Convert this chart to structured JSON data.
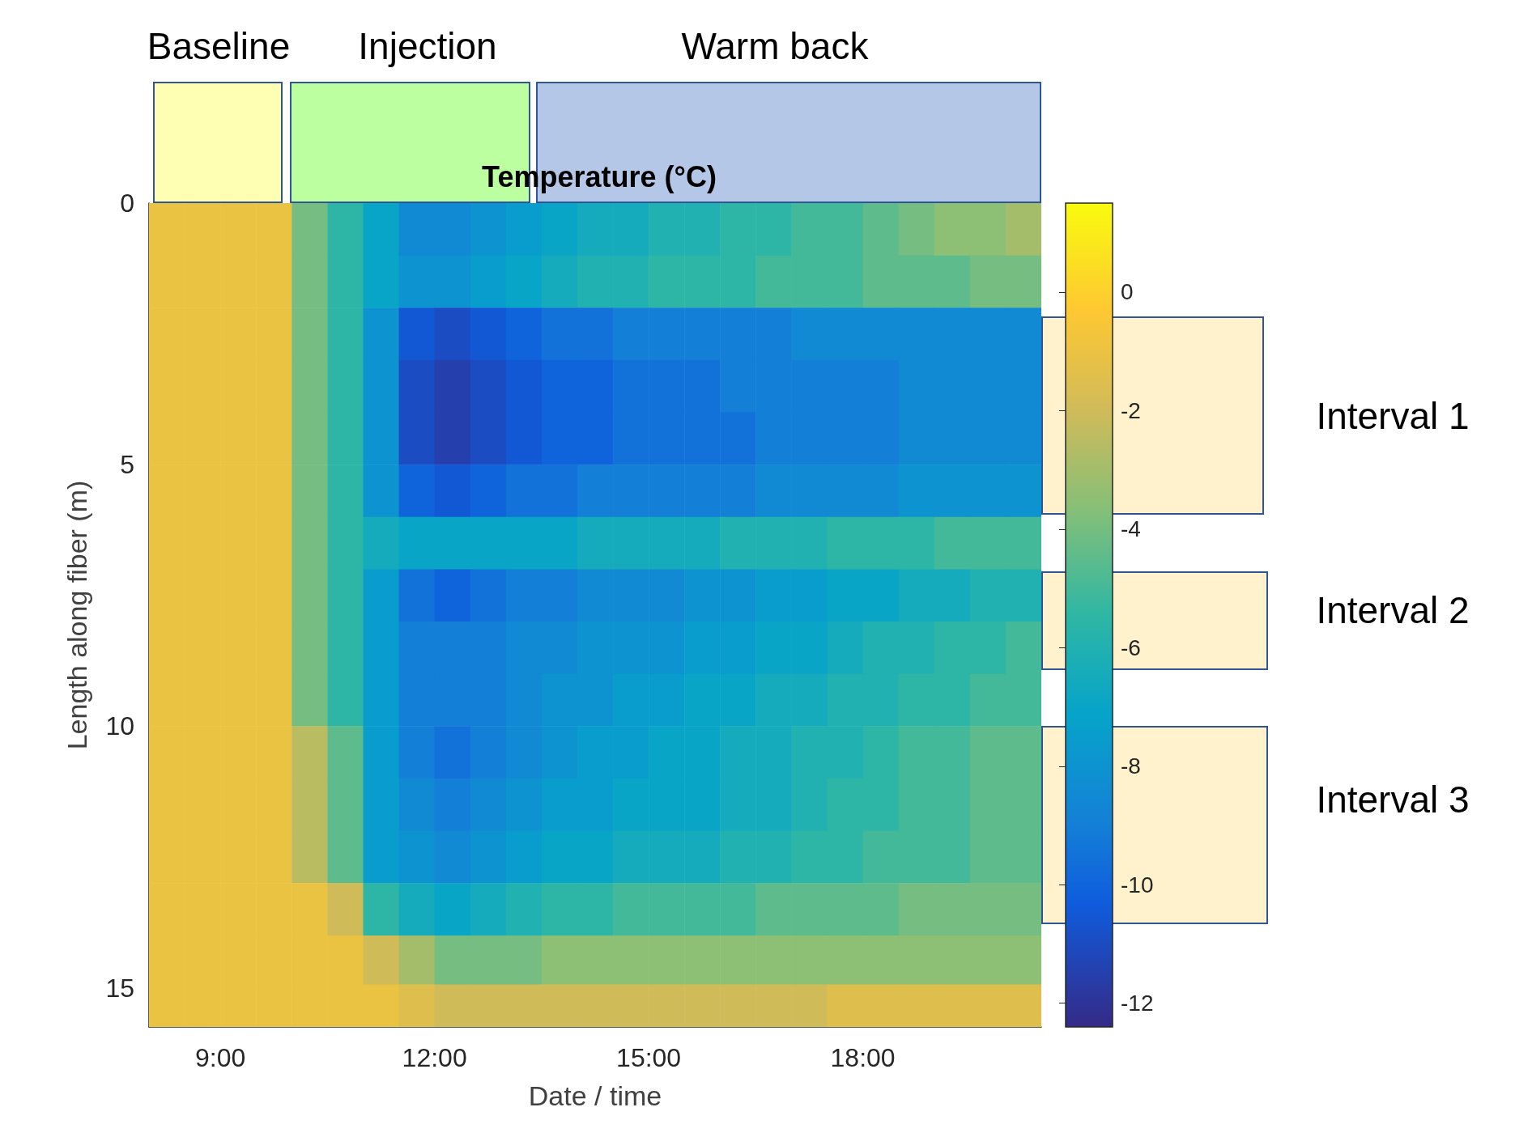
{
  "chart_data": {
    "type": "heatmap",
    "title": "Temperature (°C)",
    "xlabel": "Date / time",
    "ylabel": "Length along fiber (m)",
    "x": [
      8.25,
      8.75,
      9.25,
      9.75,
      10.25,
      10.75,
      11.25,
      11.75,
      12.25,
      12.75,
      13.25,
      13.75,
      14.25,
      14.75,
      15.25,
      15.75,
      16.25,
      16.75,
      17.25,
      17.75,
      18.25,
      18.75,
      19.25,
      19.75,
      20.25
    ],
    "y": [
      0.5,
      1.5,
      2.5,
      3.5,
      4.5,
      5.5,
      6.5,
      7.5,
      8.5,
      9.5,
      10.5,
      11.5,
      12.5,
      13.5,
      14.5,
      15.375
    ],
    "xlim": [
      8,
      20.5
    ],
    "xticks": [
      {
        "value": 9,
        "label": "9:00"
      },
      {
        "value": 12,
        "label": "12:00"
      },
      {
        "value": 15,
        "label": "15:00"
      },
      {
        "value": 18,
        "label": "18:00"
      }
    ],
    "ylim": [
      15.75,
      0
    ],
    "yticks": [
      0,
      5,
      10,
      15
    ],
    "clim": [
      -12.4,
      1.5
    ],
    "cticks": [
      0,
      -2,
      -4,
      -6,
      -8,
      -10,
      -12
    ],
    "cells": [
      [
        -1,
        -1,
        -1,
        -1,
        -4,
        -5.5,
        -7,
        -8.5,
        -8.5,
        -8,
        -7.5,
        -7,
        -6.5,
        -6.5,
        -6,
        -6,
        -5.5,
        -5.5,
        -5,
        -5,
        -4.5,
        -4,
        -3.5,
        -3.5,
        -3
      ],
      [
        -1,
        -1,
        -1,
        -1,
        -4,
        -5.5,
        -7,
        -8,
        -8,
        -7.5,
        -7,
        -6.5,
        -6,
        -6,
        -5.5,
        -5.5,
        -5.5,
        -5,
        -5,
        -5,
        -4.5,
        -4.5,
        -4.5,
        -4,
        -4
      ],
      [
        -1,
        -1,
        -1,
        -1,
        -4,
        -5.5,
        -8,
        -10.5,
        -11,
        -10.5,
        -10,
        -9.5,
        -9.5,
        -9,
        -9,
        -9,
        -9,
        -9,
        -8.5,
        -8.5,
        -8.5,
        -8.5,
        -8.5,
        -8.5,
        -8.5
      ],
      [
        -1,
        -1,
        -1,
        -1,
        -4,
        -5.5,
        -8,
        -11,
        -11.5,
        -11,
        -10.5,
        -10,
        -10,
        -9.5,
        -9.5,
        -9.5,
        -9,
        -9,
        -9,
        -9,
        -9,
        -8.5,
        -8.5,
        -8.5,
        -8.5
      ],
      [
        -1,
        -1,
        -1,
        -1,
        -4,
        -5.5,
        -8,
        -11,
        -11.5,
        -11,
        -10.5,
        -10,
        -10,
        -9.5,
        -9.5,
        -9.5,
        -9.5,
        -9,
        -9,
        -9,
        -9,
        -8.5,
        -8.5,
        -8.5,
        -8.5
      ],
      [
        -1,
        -1,
        -1,
        -1,
        -4,
        -5.5,
        -8,
        -10,
        -10.5,
        -10,
        -9.5,
        -9.5,
        -9,
        -9,
        -9,
        -9,
        -9,
        -8.5,
        -8.5,
        -8.5,
        -8.5,
        -8,
        -8,
        -8,
        -8
      ],
      [
        -1,
        -1,
        -1,
        -1,
        -4,
        -5.5,
        -6.5,
        -7,
        -7,
        -7,
        -7,
        -7,
        -6.5,
        -6.5,
        -6.5,
        -6.5,
        -6,
        -6,
        -6,
        -5.5,
        -5.5,
        -5.5,
        -5,
        -5,
        -5
      ],
      [
        -1,
        -1,
        -1,
        -1,
        -4,
        -5.5,
        -7.5,
        -9.5,
        -10,
        -9.5,
        -9,
        -9,
        -8.5,
        -8.5,
        -8.5,
        -8,
        -8,
        -7.5,
        -7.5,
        -7,
        -7,
        -6.5,
        -6.5,
        -6,
        -6
      ],
      [
        -1,
        -1,
        -1,
        -1,
        -4,
        -5.5,
        -7.5,
        -9,
        -9,
        -9,
        -8.5,
        -8.5,
        -8,
        -8,
        -8,
        -7.5,
        -7.5,
        -7,
        -7,
        -6.5,
        -6,
        -6,
        -5.5,
        -5.5,
        -5
      ],
      [
        -1,
        -1,
        -1,
        -1,
        -4,
        -5.5,
        -7.5,
        -9,
        -9,
        -9,
        -8.5,
        -8,
        -8,
        -7.5,
        -7.5,
        -7,
        -7,
        -6.5,
        -6.5,
        -6,
        -6,
        -5.5,
        -5.5,
        -5,
        -5
      ],
      [
        -1,
        -1,
        -1,
        -1,
        -2.5,
        -4.5,
        -7.5,
        -9,
        -9.5,
        -9,
        -8.5,
        -8,
        -7.5,
        -7.5,
        -7,
        -7,
        -6.5,
        -6.5,
        -6,
        -6,
        -5.5,
        -5,
        -5,
        -4.5,
        -4.5
      ],
      [
        -1,
        -1,
        -1,
        -1,
        -2.5,
        -4.5,
        -7.5,
        -8.5,
        -9,
        -8.5,
        -8,
        -7.5,
        -7.5,
        -7,
        -7,
        -7,
        -6.5,
        -6.5,
        -6,
        -5.5,
        -5.5,
        -5,
        -5,
        -4.5,
        -4.5
      ],
      [
        -1,
        -1,
        -1,
        -1,
        -2.5,
        -4.5,
        -7.5,
        -8,
        -8.5,
        -8,
        -7.5,
        -7,
        -7,
        -6.5,
        -6.5,
        -6.5,
        -6,
        -6,
        -5.5,
        -5.5,
        -5,
        -5,
        -5,
        -4.5,
        -4.5
      ],
      [
        -1,
        -1,
        -1,
        -1,
        -1,
        -2,
        -5.5,
        -6.5,
        -7,
        -6.5,
        -6,
        -5.5,
        -5.5,
        -5,
        -5,
        -5,
        -5,
        -4.5,
        -4.5,
        -4.5,
        -4.5,
        -4,
        -4,
        -4,
        -4
      ],
      [
        -1,
        -1,
        -1,
        -1,
        -1,
        -1,
        -2,
        -3,
        -4,
        -4,
        -4,
        -3.5,
        -3.5,
        -3.5,
        -3.5,
        -3.5,
        -3.5,
        -3.5,
        -3.5,
        -3.5,
        -3.5,
        -3.5,
        -3.5,
        -3.5,
        -3.5
      ],
      [
        -1,
        -1,
        -1,
        -1,
        -1,
        -1,
        -1,
        -1.5,
        -2,
        -2,
        -2,
        -2,
        -2,
        -2,
        -2,
        -2,
        -2,
        -2,
        -2,
        -1.5,
        -1.5,
        -1.5,
        -1.5,
        -1.5,
        -1.5
      ]
    ],
    "annotations": [
      "Baseline",
      "Injection",
      "Warm back",
      "Interval 1",
      "Interval 2",
      "Interval 3"
    ]
  }
}
